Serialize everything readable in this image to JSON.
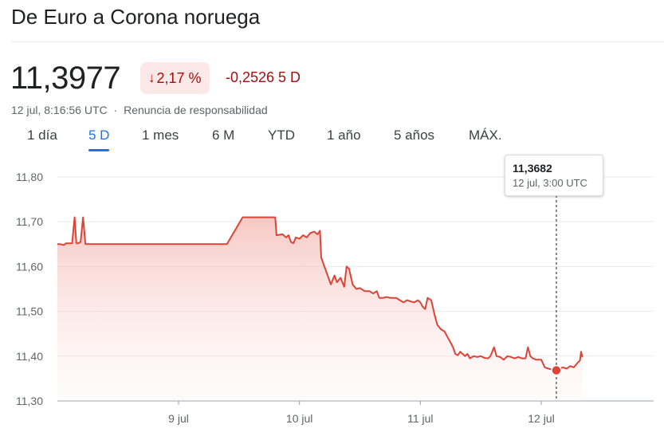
{
  "title": "De Euro a Corona noruega",
  "price": "11,3977",
  "change_percent": "2,17 %",
  "change_direction": "down",
  "change_value": "-0,2526 5 D",
  "timestamp": "12 jul, 8:16:56 UTC",
  "separator": "·",
  "disclaimer": "Renuncia de responsabilidad",
  "tabs": [
    {
      "label": "1 día"
    },
    {
      "label": "5 D",
      "active": true
    },
    {
      "label": "1 mes"
    },
    {
      "label": "6 M"
    },
    {
      "label": "YTD"
    },
    {
      "label": "1 año"
    },
    {
      "label": "5 años"
    },
    {
      "label": "MÁX."
    }
  ],
  "tooltip": {
    "value": "11,3682",
    "time": "12 jul, 3:00 UTC"
  },
  "colors": {
    "negative": "#a50e0e",
    "line": "#db4437",
    "accent": "#1a73e8"
  },
  "chart_data": {
    "type": "area",
    "ylim": [
      11.3,
      11.8
    ],
    "y_ticks": [
      11.8,
      11.7,
      11.6,
      11.5,
      11.4,
      11.3
    ],
    "y_tick_labels": [
      "11,80",
      "11,70",
      "11,60",
      "11,50",
      "11,40",
      "11,30"
    ],
    "x_ticks": [
      9,
      10,
      11,
      12
    ],
    "x_tick_labels": [
      "9 jul",
      "10 jul",
      "11 jul",
      "12 jul"
    ],
    "x_unit": "day of July (UTC)",
    "xlim": [
      8.0,
      13.0
    ],
    "grid": true,
    "highlight": {
      "x": 12.125,
      "y": 11.3682
    },
    "series": [
      {
        "values": [
          [
            8.0,
            11.65
          ],
          [
            8.02,
            11.65
          ],
          [
            8.05,
            11.648
          ],
          [
            8.07,
            11.652
          ],
          [
            8.12,
            11.652
          ],
          [
            8.14,
            11.71
          ],
          [
            8.155,
            11.652
          ],
          [
            8.17,
            11.652
          ],
          [
            8.19,
            11.655
          ],
          [
            8.21,
            11.71
          ],
          [
            8.23,
            11.65
          ],
          [
            9.4,
            11.65
          ],
          [
            9.53,
            11.71
          ],
          [
            9.8,
            11.71
          ],
          [
            9.81,
            11.67
          ],
          [
            9.86,
            11.672
          ],
          [
            9.89,
            11.665
          ],
          [
            9.91,
            11.67
          ],
          [
            9.93,
            11.655
          ],
          [
            9.95,
            11.652
          ],
          [
            9.97,
            11.665
          ],
          [
            10.0,
            11.662
          ],
          [
            10.03,
            11.67
          ],
          [
            10.06,
            11.665
          ],
          [
            10.09,
            11.675
          ],
          [
            10.12,
            11.678
          ],
          [
            10.15,
            11.672
          ],
          [
            10.17,
            11.68
          ],
          [
            10.18,
            11.62
          ],
          [
            10.22,
            11.59
          ],
          [
            10.24,
            11.575
          ],
          [
            10.26,
            11.56
          ],
          [
            10.29,
            11.58
          ],
          [
            10.31,
            11.565
          ],
          [
            10.34,
            11.575
          ],
          [
            10.37,
            11.555
          ],
          [
            10.39,
            11.6
          ],
          [
            10.41,
            11.595
          ],
          [
            10.44,
            11.56
          ],
          [
            10.47,
            11.55
          ],
          [
            10.5,
            11.552
          ],
          [
            10.54,
            11.545
          ],
          [
            10.58,
            11.545
          ],
          [
            10.61,
            11.54
          ],
          [
            10.64,
            11.545
          ],
          [
            10.66,
            11.53
          ],
          [
            10.69,
            11.53
          ],
          [
            10.72,
            11.532
          ],
          [
            10.75,
            11.53
          ],
          [
            10.8,
            11.53
          ],
          [
            10.83,
            11.525
          ],
          [
            10.86,
            11.52
          ],
          [
            10.89,
            11.525
          ],
          [
            10.92,
            11.522
          ],
          [
            10.95,
            11.52
          ],
          [
            10.98,
            11.525
          ],
          [
            11.0,
            11.52
          ],
          [
            11.02,
            11.51
          ],
          [
            11.04,
            11.505
          ],
          [
            11.06,
            11.53
          ],
          [
            11.09,
            11.525
          ],
          [
            11.12,
            11.49
          ],
          [
            11.14,
            11.47
          ],
          [
            11.17,
            11.46
          ],
          [
            11.2,
            11.455
          ],
          [
            11.23,
            11.44
          ],
          [
            11.25,
            11.43
          ],
          [
            11.27,
            11.42
          ],
          [
            11.29,
            11.405
          ],
          [
            11.31,
            11.402
          ],
          [
            11.33,
            11.41
          ],
          [
            11.35,
            11.405
          ],
          [
            11.37,
            11.4
          ],
          [
            11.39,
            11.405
          ],
          [
            11.41,
            11.395
          ],
          [
            11.44,
            11.4
          ],
          [
            11.47,
            11.398
          ],
          [
            11.5,
            11.4
          ],
          [
            11.53,
            11.396
          ],
          [
            11.56,
            11.395
          ],
          [
            11.58,
            11.4
          ],
          [
            11.61,
            11.42
          ],
          [
            11.63,
            11.4
          ],
          [
            11.66,
            11.398
          ],
          [
            11.69,
            11.392
          ],
          [
            11.72,
            11.4
          ],
          [
            11.75,
            11.398
          ],
          [
            11.78,
            11.395
          ],
          [
            11.81,
            11.398
          ],
          [
            11.84,
            11.395
          ],
          [
            11.87,
            11.395
          ],
          [
            11.89,
            11.42
          ],
          [
            11.91,
            11.4
          ],
          [
            11.93,
            11.395
          ],
          [
            11.96,
            11.392
          ],
          [
            12.0,
            11.392
          ],
          [
            12.03,
            11.375
          ],
          [
            12.06,
            11.372
          ],
          [
            12.09,
            11.37
          ],
          [
            12.125,
            11.3682
          ],
          [
            12.15,
            11.372
          ],
          [
            12.18,
            11.375
          ],
          [
            12.21,
            11.372
          ],
          [
            12.24,
            11.378
          ],
          [
            12.27,
            11.375
          ],
          [
            12.3,
            11.385
          ],
          [
            12.32,
            11.39
          ],
          [
            12.33,
            11.41
          ],
          [
            12.34,
            11.3977
          ]
        ]
      }
    ]
  }
}
